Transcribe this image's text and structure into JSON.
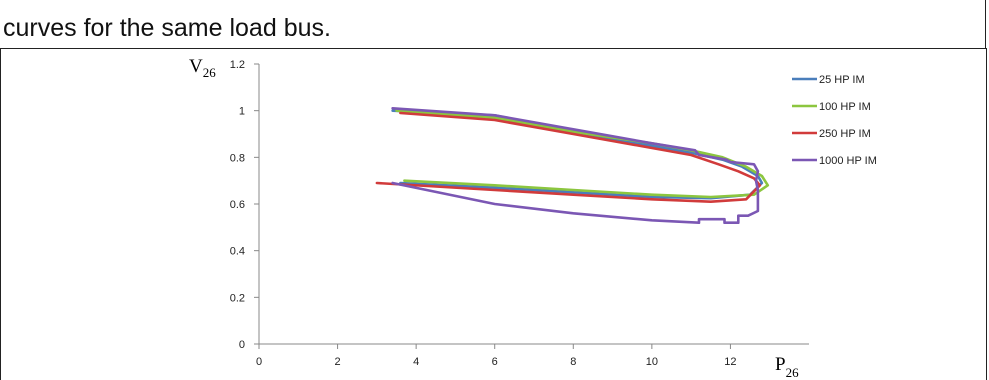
{
  "document": {
    "text_line": "curves for the same load bus."
  },
  "chart_data": {
    "type": "line",
    "title": "",
    "xlabel_main": "P",
    "xlabel_sub": "26",
    "ylabel_main": "V",
    "ylabel_sub": "26",
    "xlim": [
      0,
      14
    ],
    "ylim": [
      0,
      1.2
    ],
    "x_ticks": [
      0,
      2,
      4,
      6,
      8,
      10,
      12
    ],
    "x_tick_labels": [
      "0",
      "2",
      "4",
      "6",
      "8",
      "10",
      "12"
    ],
    "y_ticks": [
      0,
      0.2,
      0.4,
      0.6,
      0.8,
      1,
      1.2
    ],
    "y_tick_labels": [
      "0",
      "0.2",
      "0.4",
      "0.6",
      "0.8",
      "1",
      "1.2"
    ],
    "grid": false,
    "legend_position": "top-right",
    "series": [
      {
        "name": "25 HP IM",
        "color": "#4a7ebb",
        "points": [
          [
            3.4,
            1.0
          ],
          [
            6,
            0.98
          ],
          [
            8,
            0.91
          ],
          [
            10,
            0.85
          ],
          [
            11,
            0.82
          ],
          [
            11.8,
            0.79
          ],
          [
            12.3,
            0.76
          ],
          [
            12.7,
            0.72
          ],
          [
            12.8,
            0.69
          ],
          [
            12.5,
            0.64
          ],
          [
            11.5,
            0.625
          ],
          [
            10,
            0.63
          ],
          [
            8,
            0.65
          ],
          [
            6,
            0.67
          ],
          [
            3.6,
            0.69
          ]
        ]
      },
      {
        "name": "100 HP IM",
        "color": "#8cc63f",
        "points": [
          [
            3.5,
            1.0
          ],
          [
            6,
            0.97
          ],
          [
            8,
            0.91
          ],
          [
            10,
            0.86
          ],
          [
            11,
            0.83
          ],
          [
            11.8,
            0.8
          ],
          [
            12.4,
            0.76
          ],
          [
            12.8,
            0.72
          ],
          [
            12.95,
            0.68
          ],
          [
            12.6,
            0.64
          ],
          [
            11.5,
            0.63
          ],
          [
            10,
            0.64
          ],
          [
            8,
            0.66
          ],
          [
            6,
            0.68
          ],
          [
            3.7,
            0.7
          ]
        ]
      },
      {
        "name": "250 HP IM",
        "color": "#d13b3b",
        "points": [
          [
            3.6,
            0.99
          ],
          [
            6,
            0.96
          ],
          [
            8,
            0.9
          ],
          [
            10,
            0.84
          ],
          [
            11,
            0.81
          ],
          [
            11.7,
            0.77
          ],
          [
            12.2,
            0.74
          ],
          [
            12.6,
            0.71
          ],
          [
            12.75,
            0.68
          ],
          [
            12.4,
            0.62
          ],
          [
            11.5,
            0.61
          ],
          [
            10,
            0.62
          ],
          [
            8,
            0.64
          ],
          [
            6,
            0.66
          ],
          [
            3,
            0.69
          ]
        ]
      },
      {
        "name": "1000 HP IM",
        "color": "#7b57b4",
        "points": [
          [
            3.4,
            1.01
          ],
          [
            6,
            0.98
          ],
          [
            8,
            0.92
          ],
          [
            10,
            0.86
          ],
          [
            11.1,
            0.83
          ],
          [
            11.2,
            0.81
          ],
          [
            11.9,
            0.79
          ],
          [
            12,
            0.78
          ],
          [
            12.6,
            0.77
          ],
          [
            12.7,
            0.74
          ],
          [
            12.65,
            0.7
          ],
          [
            12.7,
            0.66
          ],
          [
            12.7,
            0.63
          ],
          [
            12.7,
            0.57
          ],
          [
            12.45,
            0.55
          ],
          [
            12.2,
            0.55
          ],
          [
            12.2,
            0.52
          ],
          [
            11.85,
            0.52
          ],
          [
            11.85,
            0.535
          ],
          [
            11.2,
            0.535
          ],
          [
            11.2,
            0.52
          ],
          [
            10,
            0.53
          ],
          [
            8,
            0.56
          ],
          [
            6,
            0.6
          ],
          [
            3.4,
            0.69
          ]
        ]
      }
    ]
  }
}
